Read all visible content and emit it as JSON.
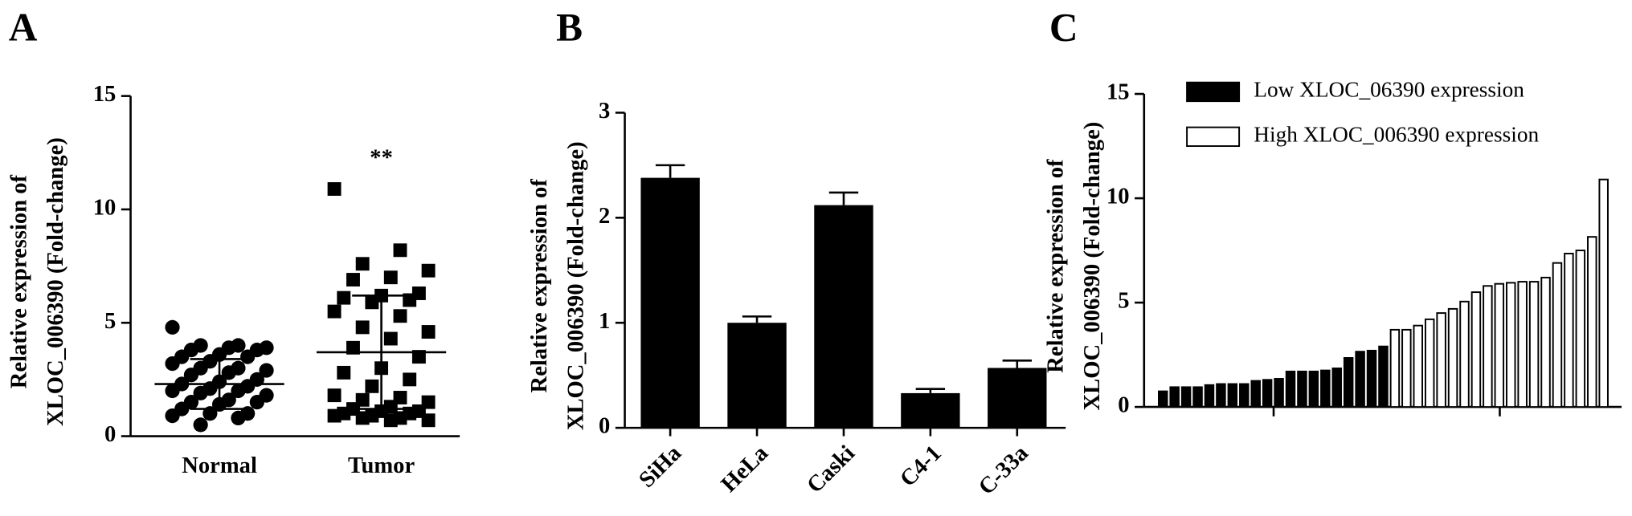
{
  "chart_data": [
    {
      "type": "scatter",
      "panel": "A",
      "ylabel": [
        "Relative expression of",
        "XLOC_006390 (Fold-change)"
      ],
      "categories": [
        "Normal",
        "Tumor"
      ],
      "series": [
        {
          "color": "#000000",
          "marker": "circle",
          "mean": 2.3,
          "sd": 1.1,
          "values": [
            4.8,
            4.0,
            4.0,
            3.9,
            3.9,
            3.8,
            3.8,
            3.6,
            3.5,
            3.5,
            3.3,
            3.2,
            3.0,
            3.0,
            2.9,
            2.8,
            2.7,
            2.5,
            2.4,
            2.3,
            2.2,
            2.1,
            2.0,
            2.0,
            1.9,
            1.8,
            1.6,
            1.5,
            1.5,
            1.4,
            1.2,
            1.0,
            1.0,
            0.9,
            0.8,
            0.5
          ]
        },
        {
          "color": "#000000",
          "marker": "square",
          "mean": 3.7,
          "sd": 2.5,
          "values": [
            10.9,
            8.2,
            7.6,
            7.3,
            7.0,
            6.9,
            6.3,
            6.2,
            6.1,
            6.0,
            5.9,
            5.5,
            5.3,
            4.8,
            4.6,
            4.3,
            3.9,
            3.5,
            3.0,
            2.8,
            2.5,
            2.2,
            1.8,
            1.7,
            1.6,
            1.5,
            1.3,
            1.2,
            1.1,
            1.1,
            1.0,
            1.0,
            0.9,
            0.9,
            0.8,
            0.8,
            0.7,
            0.7
          ]
        }
      ],
      "annotation": "**",
      "ylim": [
        0,
        15
      ],
      "yticks": [
        0,
        5,
        10,
        15
      ]
    },
    {
      "type": "bar",
      "panel": "B",
      "ylabel": [
        "Relative expression of",
        "XLOC_006390 (Fold-change)"
      ],
      "categories": [
        "SiHa",
        "HeLa",
        "Caski",
        "C4-1",
        "C-33a"
      ],
      "values": [
        2.38,
        1.0,
        2.12,
        0.33,
        0.57
      ],
      "errors": [
        0.12,
        0.06,
        0.12,
        0.04,
        0.07
      ],
      "color": "#000000",
      "ylim": [
        0,
        3
      ],
      "yticks": [
        0,
        1,
        2,
        3
      ]
    },
    {
      "type": "bar",
      "panel": "C",
      "ylabel": [
        "Relative expression of",
        "XLOC_006390 (Fold-change)"
      ],
      "series": [
        {
          "name": "Low XLOC_06390 expression",
          "color": "#000000",
          "values": [
            0.75,
            0.95,
            0.95,
            0.95,
            1.05,
            1.1,
            1.1,
            1.1,
            1.25,
            1.3,
            1.35,
            1.7,
            1.7,
            1.7,
            1.75,
            1.85,
            2.35,
            2.65,
            2.7,
            2.9
          ]
        },
        {
          "name": "High XLOC_006390 expression",
          "color": "#ffffff",
          "values": [
            3.7,
            3.7,
            3.9,
            4.2,
            4.5,
            4.7,
            5.05,
            5.5,
            5.8,
            5.9,
            5.95,
            6.0,
            6.0,
            6.2,
            6.9,
            7.35,
            7.5,
            8.15,
            10.9
          ]
        }
      ],
      "legend": "upper left",
      "ylim": [
        0,
        15
      ],
      "yticks": [
        0,
        5,
        10,
        15
      ]
    }
  ]
}
